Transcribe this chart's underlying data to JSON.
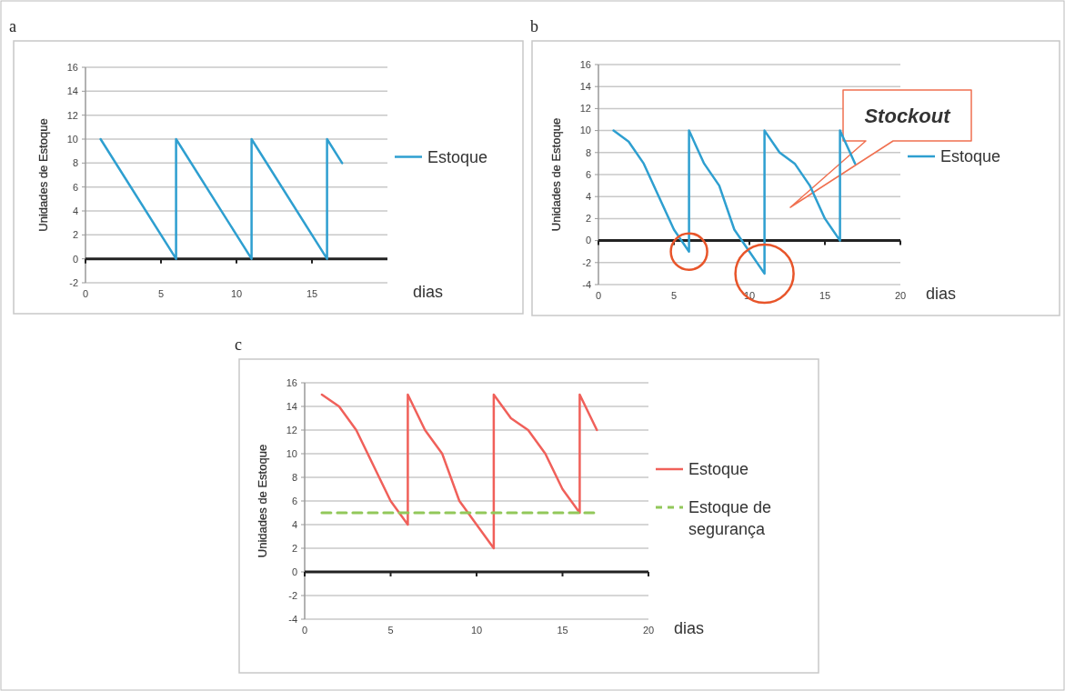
{
  "chart_data": [
    {
      "type": "line",
      "title": "a",
      "xlabel": "dias",
      "ylabel": "Unidades de Estoque",
      "xlim": [
        0,
        20
      ],
      "xticks": [
        0,
        5,
        10,
        15
      ],
      "ylim": [
        -2,
        16
      ],
      "yticks": [
        -2,
        0,
        2,
        4,
        6,
        8,
        10,
        12,
        14,
        16
      ],
      "grid": "y",
      "legend": "right",
      "series": [
        {
          "name": "Estoque",
          "color": "#2e9fd0",
          "x": [
            1,
            6,
            6,
            11,
            11,
            16,
            16,
            17
          ],
          "values": [
            10,
            0,
            10,
            0,
            10,
            0,
            10,
            8
          ]
        }
      ]
    },
    {
      "type": "line",
      "title": "b",
      "xlabel": "dias",
      "ylabel": "Unidades de Estoque",
      "xlim": [
        0,
        20
      ],
      "xticks": [
        0,
        5,
        10,
        15,
        20
      ],
      "ylim": [
        -4,
        16
      ],
      "yticks": [
        -4,
        -2,
        0,
        2,
        4,
        6,
        8,
        10,
        12,
        14,
        16
      ],
      "grid": "y",
      "legend": "right",
      "annotations": [
        "Stockout"
      ],
      "series": [
        {
          "name": "Estoque",
          "color": "#2e9fd0",
          "x": [
            1,
            2,
            3,
            4,
            5,
            6,
            6,
            7,
            8,
            9,
            10,
            11,
            11,
            12,
            13,
            14,
            15,
            16,
            16,
            17
          ],
          "values": [
            10,
            9,
            7,
            4,
            1,
            -1,
            10,
            7,
            5,
            1,
            -1,
            -3,
            10,
            8,
            7,
            5,
            2,
            0,
            10,
            7
          ]
        }
      ]
    },
    {
      "type": "line",
      "title": "c",
      "xlabel": "dias",
      "ylabel": "Unidades de Estoque",
      "xlim": [
        0,
        20
      ],
      "xticks": [
        0,
        5,
        10,
        15,
        20
      ],
      "ylim": [
        -4,
        16
      ],
      "yticks": [
        -4,
        -2,
        0,
        2,
        4,
        6,
        8,
        10,
        12,
        14,
        16
      ],
      "grid": "y",
      "legend": "right",
      "series": [
        {
          "name": "Estoque",
          "color": "#f0605a",
          "x": [
            1,
            2,
            3,
            4,
            5,
            6,
            6,
            7,
            8,
            9,
            10,
            11,
            11,
            12,
            13,
            14,
            15,
            16,
            16,
            17
          ],
          "values": [
            15,
            14,
            12,
            9,
            6,
            4,
            15,
            12,
            10,
            6,
            4,
            2,
            15,
            13,
            12,
            10,
            7,
            5,
            15,
            12
          ]
        },
        {
          "name": "Estoque de segurança",
          "color": "#92c85a",
          "line_style": "dashed",
          "x": [
            1,
            17
          ],
          "values": [
            5,
            5
          ]
        }
      ]
    }
  ]
}
